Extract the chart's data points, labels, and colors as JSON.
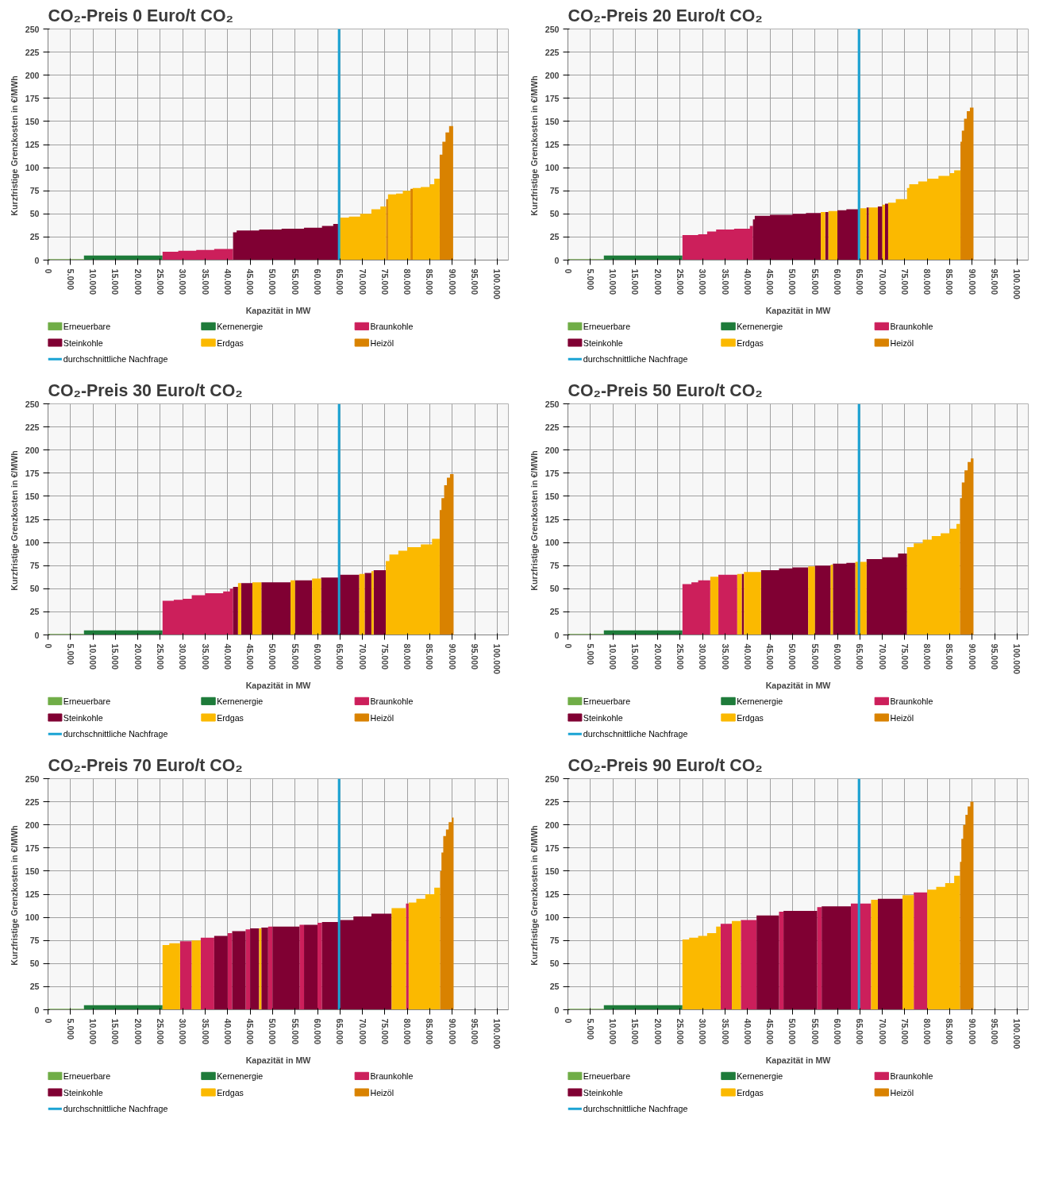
{
  "chart_data": [
    {
      "type": "area",
      "title": "CO₂-Preis 0 Euro/t CO₂",
      "xlabel": "Kapazität in MW",
      "ylabel": "Kurzfristige Grenzkosten  in €/MWh",
      "xlim": [
        0,
        102500
      ],
      "ylim": [
        0,
        250
      ],
      "xticks": [
        0,
        {
          "value": 5000,
          "label": "5.000"
        },
        {
          "value": 10000,
          "label": "10.000"
        },
        {
          "value": 15000,
          "label": "15.000"
        },
        {
          "value": 20000,
          "label": "20.000"
        },
        {
          "value": 25000,
          "label": "25.000"
        },
        {
          "value": 30000,
          "label": "30.000"
        },
        {
          "value": 35000,
          "label": "35.000"
        },
        {
          "value": 40000,
          "label": "40.000"
        },
        {
          "value": 45000,
          "label": "45.000"
        },
        {
          "value": 50000,
          "label": "50.000"
        },
        {
          "value": 55000,
          "label": "55.000"
        },
        {
          "value": 60000,
          "label": "60.000"
        },
        {
          "value": 65000,
          "label": "65.000"
        },
        {
          "value": 70000,
          "label": "70.000"
        },
        {
          "value": 75000,
          "label": "75.000"
        },
        {
          "value": 80000,
          "label": "80.000"
        },
        {
          "value": 85000,
          "label": "85.000"
        },
        {
          "value": 90000,
          "label": "90.000"
        },
        {
          "value": 95000,
          "label": "95.000"
        },
        {
          "value": 100000,
          "label": "100.000"
        }
      ],
      "yticks": [
        0,
        25,
        50,
        75,
        100,
        125,
        150,
        175,
        200,
        225,
        250
      ],
      "grid": true,
      "legend": "bottom",
      "series": [
        {
          "name": "Erneuerbare",
          "color": "#70ad47",
          "x": [
            0,
            8000
          ],
          "values": [
            1,
            1
          ]
        },
        {
          "name": "Kernenergie",
          "color": "#1e7b3a",
          "x": [
            8000,
            25500
          ],
          "values": [
            5,
            5
          ]
        },
        {
          "name": "Braunkohle",
          "color": "#cc1f5b",
          "x": [
            25500,
            29000,
            33000,
            37000,
            41200
          ],
          "values": [
            9,
            10,
            11,
            12,
            12
          ]
        },
        {
          "name": "Steinkohle",
          "color": "#800033",
          "x": [
            41200,
            42000,
            47000,
            52000,
            57000,
            61000,
            63500,
            64800
          ],
          "values": [
            30,
            32,
            33,
            34,
            35,
            37,
            39,
            39
          ]
        },
        {
          "name": "Erdgas",
          "color": "#fbb900",
          "x": [
            64800,
            67000,
            69500,
            72000,
            74000,
            75300,
            75700,
            77500,
            79000,
            80700,
            81200,
            83000,
            85000,
            86000,
            87200
          ],
          "values": [
            46,
            47,
            50,
            55,
            58,
            null,
            71,
            72,
            75,
            null,
            78,
            79,
            82,
            88,
            88
          ]
        },
        {
          "name": "Heizöl",
          "color": "#d98200",
          "x": [
            75300,
            75700,
            80700,
            81200,
            87200,
            87800,
            88500,
            89300,
            90200
          ],
          "values": [
            66,
            null,
            77,
            null,
            114,
            128,
            138,
            145,
            145
          ]
        }
      ],
      "ref_lines": [
        {
          "axis": "x",
          "value": 64800,
          "label": "durchschnittliche Nachfrage",
          "color": "#1aa3d4"
        }
      ]
    },
    {
      "type": "area",
      "title": "CO₂-Preis 20 Euro/t CO₂",
      "xlabel": "Kapazität in MW",
      "ylabel": "Kurzfristige Grenzkosten  in €/MWh",
      "xlim": [
        0,
        102500
      ],
      "ylim": [
        0,
        250
      ],
      "xticks": [
        0,
        {
          "value": 5000,
          "label": "5.000"
        },
        {
          "value": 10000,
          "label": "10.000"
        },
        {
          "value": 15000,
          "label": "15.000"
        },
        {
          "value": 20000,
          "label": "20.000"
        },
        {
          "value": 25000,
          "label": "25.000"
        },
        {
          "value": 30000,
          "label": "30.000"
        },
        {
          "value": 35000,
          "label": "35.000"
        },
        {
          "value": 40000,
          "label": "40.000"
        },
        {
          "value": 45000,
          "label": "45.000"
        },
        {
          "value": 50000,
          "label": "50.000"
        },
        {
          "value": 55000,
          "label": "55.000"
        },
        {
          "value": 60000,
          "label": "60.000"
        },
        {
          "value": 65000,
          "label": "65.000"
        },
        {
          "value": 70000,
          "label": "70.000"
        },
        {
          "value": 75000,
          "label": "75.000"
        },
        {
          "value": 80000,
          "label": "80.000"
        },
        {
          "value": 85000,
          "label": "85.000"
        },
        {
          "value": 90000,
          "label": "90.000"
        },
        {
          "value": 95000,
          "label": "95.000"
        },
        {
          "value": 100000,
          "label": "100.000"
        }
      ],
      "yticks": [
        0,
        25,
        50,
        75,
        100,
        125,
        150,
        175,
        200,
        225,
        250
      ],
      "grid": true,
      "legend": "bottom",
      "series": [
        {
          "name": "Erneuerbare",
          "color": "#70ad47",
          "x": [
            0,
            8000
          ],
          "values": [
            1,
            1
          ]
        },
        {
          "name": "Kernenergie",
          "color": "#1e7b3a",
          "x": [
            8000,
            25500
          ],
          "values": [
            5,
            5
          ]
        },
        {
          "name": "Braunkohle",
          "color": "#cc1f5b",
          "x": [
            25500,
            29000,
            31000,
            33000,
            37000,
            40500,
            41200
          ],
          "values": [
            27,
            28,
            31,
            33,
            34,
            37,
            37
          ]
        },
        {
          "name": "Steinkohle",
          "color": "#800033",
          "x": [
            41200,
            41600,
            45000,
            50000,
            53000,
            56300,
            57300,
            58000,
            60000,
            62000,
            64800,
            66500,
            67000,
            69000,
            70000,
            70600,
            71300
          ],
          "values": [
            44,
            48,
            49,
            50,
            51,
            null,
            52,
            null,
            54,
            55,
            null,
            57,
            null,
            58,
            null,
            61,
            61
          ]
        },
        {
          "name": "Erdgas",
          "color": "#fbb900",
          "x": [
            56300,
            57300,
            58000,
            60000,
            64800,
            66500,
            67000,
            69000,
            70000,
            70600,
            71300,
            73000,
            75500,
            76000,
            78000,
            80000,
            82500,
            85000,
            86000,
            87400
          ],
          "values": [
            52,
            null,
            53,
            null,
            56,
            null,
            57,
            null,
            60,
            null,
            62,
            66,
            78,
            82,
            85,
            88,
            91,
            94,
            97,
            97
          ]
        },
        {
          "name": "Heizöl",
          "color": "#d98200",
          "x": [
            87400,
            87700,
            88200,
            88800,
            89500,
            90300
          ],
          "values": [
            128,
            140,
            153,
            161,
            165,
            165
          ]
        }
      ],
      "ref_lines": [
        {
          "axis": "x",
          "value": 64800,
          "label": "durchschnittliche Nachfrage",
          "color": "#1aa3d4"
        }
      ]
    },
    {
      "type": "area",
      "title": "CO₂-Preis 30 Euro/t CO₂",
      "xlabel": "Kapazität in MW",
      "ylabel": "Kurzfristige Grenzkosten  in €/MWh",
      "xlim": [
        0,
        102500
      ],
      "ylim": [
        0,
        250
      ],
      "xticks": [
        0,
        {
          "value": 5000,
          "label": "5.000"
        },
        {
          "value": 10000,
          "label": "10.000"
        },
        {
          "value": 15000,
          "label": "15.000"
        },
        {
          "value": 20000,
          "label": "20.000"
        },
        {
          "value": 25000,
          "label": "25.000"
        },
        {
          "value": 30000,
          "label": "30.000"
        },
        {
          "value": 35000,
          "label": "35.000"
        },
        {
          "value": 40000,
          "label": "40.000"
        },
        {
          "value": 45000,
          "label": "45.000"
        },
        {
          "value": 50000,
          "label": "50.000"
        },
        {
          "value": 55000,
          "label": "55.000"
        },
        {
          "value": 60000,
          "label": "60.000"
        },
        {
          "value": 65000,
          "label": "65.000"
        },
        {
          "value": 70000,
          "label": "70.000"
        },
        {
          "value": 75000,
          "label": "75.000"
        },
        {
          "value": 80000,
          "label": "80.000"
        },
        {
          "value": 85000,
          "label": "85.000"
        },
        {
          "value": 90000,
          "label": "90.000"
        },
        {
          "value": 95000,
          "label": "95.000"
        },
        {
          "value": 100000,
          "label": "100.000"
        }
      ],
      "yticks": [
        0,
        25,
        50,
        75,
        100,
        125,
        150,
        175,
        200,
        225,
        250
      ],
      "grid": true,
      "legend": "bottom",
      "series": [
        {
          "name": "Erneuerbare",
          "color": "#70ad47",
          "x": [
            0,
            8000
          ],
          "values": [
            1,
            1
          ]
        },
        {
          "name": "Kernenergie",
          "color": "#1e7b3a",
          "x": [
            8000,
            25500
          ],
          "values": [
            5,
            5
          ]
        },
        {
          "name": "Braunkohle",
          "color": "#cc1f5b",
          "x": [
            25500,
            28000,
            30000,
            32000,
            35000,
            39000,
            40500,
            41200
          ],
          "values": [
            37,
            38,
            39,
            43,
            45,
            47,
            50,
            50
          ]
        },
        {
          "name": "Steinkohle",
          "color": "#800033",
          "x": [
            41200,
            42300,
            43000,
            45500,
            47500,
            54000,
            55000,
            58800,
            60800,
            64800,
            64900,
            69300,
            70500,
            72000,
            72500,
            75200
          ],
          "values": [
            52,
            null,
            56,
            null,
            57,
            null,
            59,
            null,
            62,
            null,
            65,
            null,
            67,
            null,
            70,
            70
          ]
        },
        {
          "name": "Erdgas",
          "color": "#fbb900",
          "x": [
            42300,
            43000,
            45500,
            47500,
            54000,
            55000,
            58800,
            60800,
            64800,
            64900,
            69300,
            70500,
            72000,
            72500,
            75200,
            76000,
            78000,
            80000,
            83000,
            85500,
            87200
          ],
          "values": [
            56,
            null,
            57,
            null,
            59,
            null,
            61,
            null,
            64,
            null,
            66,
            null,
            69,
            null,
            80,
            87,
            91,
            95,
            98,
            104,
            104
          ]
        },
        {
          "name": "Heizöl",
          "color": "#d98200",
          "x": [
            87200,
            87600,
            88200,
            88800,
            89500,
            90300
          ],
          "values": [
            135,
            148,
            162,
            170,
            174,
            174
          ]
        }
      ],
      "ref_lines": [
        {
          "axis": "x",
          "value": 64800,
          "label": "durchschnittliche Nachfrage",
          "color": "#1aa3d4"
        }
      ]
    },
    {
      "type": "area",
      "title": "CO₂-Preis 50 Euro/t CO₂",
      "xlabel": "Kapazität in MW",
      "ylabel": "Kurzfristige Grenzkosten  in €/MWh",
      "xlim": [
        0,
        102500
      ],
      "ylim": [
        0,
        250
      ],
      "xticks": [
        0,
        {
          "value": 5000,
          "label": "5.000"
        },
        {
          "value": 10000,
          "label": "10.000"
        },
        {
          "value": 15000,
          "label": "15.000"
        },
        {
          "value": 20000,
          "label": "20.000"
        },
        {
          "value": 25000,
          "label": "25.000"
        },
        {
          "value": 30000,
          "label": "30.000"
        },
        {
          "value": 35000,
          "label": "35.000"
        },
        {
          "value": 40000,
          "label": "40.000"
        },
        {
          "value": 45000,
          "label": "45.000"
        },
        {
          "value": 50000,
          "label": "50.000"
        },
        {
          "value": 55000,
          "label": "55.000"
        },
        {
          "value": 60000,
          "label": "60.000"
        },
        {
          "value": 65000,
          "label": "65.000"
        },
        {
          "value": 70000,
          "label": "70.000"
        },
        {
          "value": 75000,
          "label": "75.000"
        },
        {
          "value": 80000,
          "label": "80.000"
        },
        {
          "value": 85000,
          "label": "85.000"
        },
        {
          "value": 90000,
          "label": "90.000"
        },
        {
          "value": 95000,
          "label": "95.000"
        },
        {
          "value": 100000,
          "label": "100.000"
        }
      ],
      "yticks": [
        0,
        25,
        50,
        75,
        100,
        125,
        150,
        175,
        200,
        225,
        250
      ],
      "grid": true,
      "legend": "bottom",
      "series": [
        {
          "name": "Erneuerbare",
          "color": "#70ad47",
          "x": [
            0,
            8000
          ],
          "values": [
            1,
            1
          ]
        },
        {
          "name": "Kernenergie",
          "color": "#1e7b3a",
          "x": [
            8000,
            25500
          ],
          "values": [
            5,
            5
          ]
        },
        {
          "name": "Braunkohle",
          "color": "#cc1f5b",
          "x": [
            25500,
            27500,
            29000,
            31700,
            33500,
            37700
          ],
          "values": [
            55,
            57,
            59,
            null,
            65,
            65
          ]
        },
        {
          "name": "Steinkohle",
          "color": "#800033",
          "x": [
            38700,
            39200,
            43000,
            47000,
            50000,
            53500,
            55000,
            58500,
            59000,
            62000,
            64000,
            66500,
            70000,
            73500,
            75500
          ],
          "values": [
            66,
            null,
            70,
            72,
            73,
            null,
            75,
            null,
            77,
            78,
            null,
            82,
            84,
            88,
            88
          ]
        },
        {
          "name": "Erdgas",
          "color": "#fbb900",
          "x": [
            31700,
            33500,
            37700,
            38700,
            39200,
            43000,
            53500,
            55000,
            58500,
            59000,
            64000,
            66500,
            75500,
            77000,
            79000,
            81000,
            83000,
            85000,
            86500,
            87300
          ],
          "values": [
            63,
            null,
            66,
            null,
            68,
            null,
            74,
            null,
            76,
            null,
            79,
            null,
            95,
            99,
            103,
            107,
            110,
            115,
            120,
            120
          ]
        },
        {
          "name": "Heizöl",
          "color": "#d98200",
          "x": [
            87300,
            87700,
            88300,
            89000,
            89700,
            90300
          ],
          "values": [
            148,
            165,
            178,
            187,
            191,
            191
          ]
        }
      ],
      "ref_lines": [
        {
          "axis": "x",
          "value": 64800,
          "label": "durchschnittliche Nachfrage",
          "color": "#1aa3d4"
        }
      ]
    },
    {
      "type": "area",
      "title": "CO₂-Preis 70 Euro/t CO₂",
      "xlabel": "Kapazität in MW",
      "ylabel": "Kurzfristige Grenzkosten  in €/MWh",
      "xlim": [
        0,
        102500
      ],
      "ylim": [
        0,
        250
      ],
      "xticks": [
        0,
        {
          "value": 5000,
          "label": "5.000"
        },
        {
          "value": 10000,
          "label": "10.000"
        },
        {
          "value": 15000,
          "label": "15.000"
        },
        {
          "value": 20000,
          "label": "20.000"
        },
        {
          "value": 25000,
          "label": "25.000"
        },
        {
          "value": 30000,
          "label": "30.000"
        },
        {
          "value": 35000,
          "label": "35.000"
        },
        {
          "value": 40000,
          "label": "40.000"
        },
        {
          "value": 45000,
          "label": "45.000"
        },
        {
          "value": 50000,
          "label": "50.000"
        },
        {
          "value": 55000,
          "label": "55.000"
        },
        {
          "value": 60000,
          "label": "60.000"
        },
        {
          "value": 65000,
          "label": "65.000"
        },
        {
          "value": 70000,
          "label": "70.000"
        },
        {
          "value": 75000,
          "label": "75.000"
        },
        {
          "value": 80000,
          "label": "80.000"
        },
        {
          "value": 85000,
          "label": "85.000"
        },
        {
          "value": 90000,
          "label": "90.000"
        },
        {
          "value": 95000,
          "label": "95.000"
        },
        {
          "value": 100000,
          "label": "100.000"
        }
      ],
      "yticks": [
        0,
        25,
        50,
        75,
        100,
        125,
        150,
        175,
        200,
        225,
        250
      ],
      "grid": true,
      "legend": "bottom",
      "series": [
        {
          "name": "Erneuerbare",
          "color": "#70ad47",
          "x": [
            0,
            8000
          ],
          "values": [
            1,
            1
          ]
        },
        {
          "name": "Kernenergie",
          "color": "#1e7b3a",
          "x": [
            8000,
            25500
          ],
          "values": [
            5,
            5
          ]
        },
        {
          "name": "Braunkohle",
          "color": "#cc1f5b",
          "x": [
            29400,
            32000,
            34000,
            37000,
            40000,
            41000,
            44000,
            45000,
            49000,
            50000,
            56000,
            57000,
            60000,
            61000,
            79700,
            80300
          ],
          "values": [
            74,
            null,
            78,
            null,
            83,
            null,
            87,
            null,
            90,
            null,
            92,
            null,
            94,
            null,
            115,
            115
          ]
        },
        {
          "name": "Steinkohle",
          "color": "#800033",
          "x": [
            37000,
            40000,
            41000,
            44000,
            45000,
            47000,
            47500,
            49000,
            50000,
            56000,
            57000,
            60000,
            61000,
            64800,
            68000,
            72000,
            76500
          ],
          "values": [
            80,
            null,
            85,
            null,
            88,
            null,
            89,
            null,
            90,
            null,
            92,
            null,
            95,
            97,
            101,
            104,
            104
          ]
        },
        {
          "name": "Erdgas",
          "color": "#fbb900",
          "x": [
            25500,
            27000,
            29400,
            32000,
            34000,
            47000,
            47500,
            76500,
            79700,
            80300,
            82000,
            84000,
            86000,
            87300
          ],
          "values": [
            70,
            72,
            null,
            75,
            null,
            88,
            null,
            110,
            null,
            116,
            120,
            125,
            132,
            132
          ]
        },
        {
          "name": "Heizöl",
          "color": "#d98200",
          "x": [
            87300,
            87600,
            88000,
            88600,
            89200,
            89900,
            90300
          ],
          "values": [
            150,
            170,
            188,
            195,
            203,
            208,
            208
          ]
        }
      ],
      "ref_lines": [
        {
          "axis": "x",
          "value": 64800,
          "label": "durchschnittliche Nachfrage",
          "color": "#1aa3d4"
        }
      ]
    },
    {
      "type": "area",
      "title": "CO₂-Preis 90 Euro/t CO₂",
      "xlabel": "Kapazität in MW",
      "ylabel": "Kurzfristige Grenzkosten  in €/MWh",
      "xlim": [
        0,
        102500
      ],
      "ylim": [
        0,
        250
      ],
      "xticks": [
        0,
        {
          "value": 5000,
          "label": "5.000"
        },
        {
          "value": 10000,
          "label": "10.000"
        },
        {
          "value": 15000,
          "label": "15.000"
        },
        {
          "value": 20000,
          "label": "20.000"
        },
        {
          "value": 25000,
          "label": "25.000"
        },
        {
          "value": 30000,
          "label": "30.000"
        },
        {
          "value": 35000,
          "label": "35.000"
        },
        {
          "value": 40000,
          "label": "40.000"
        },
        {
          "value": 45000,
          "label": "45.000"
        },
        {
          "value": 50000,
          "label": "50.000"
        },
        {
          "value": 55000,
          "label": "55.000"
        },
        {
          "value": 60000,
          "label": "60.000"
        },
        {
          "value": 65000,
          "label": "65.000"
        },
        {
          "value": 70000,
          "label": "70.000"
        },
        {
          "value": 75000,
          "label": "75.000"
        },
        {
          "value": 80000,
          "label": "80.000"
        },
        {
          "value": 85000,
          "label": "85.000"
        },
        {
          "value": 90000,
          "label": "90.000"
        },
        {
          "value": 95000,
          "label": "95.000"
        },
        {
          "value": 100000,
          "label": "100.000"
        }
      ],
      "yticks": [
        0,
        25,
        50,
        75,
        100,
        125,
        150,
        175,
        200,
        225,
        250
      ],
      "grid": true,
      "legend": "bottom",
      "series": [
        {
          "name": "Erneuerbare",
          "color": "#70ad47",
          "x": [
            0,
            8000
          ],
          "values": [
            1,
            1
          ]
        },
        {
          "name": "Kernenergie",
          "color": "#1e7b3a",
          "x": [
            8000,
            25500
          ],
          "values": [
            5,
            5
          ]
        },
        {
          "name": "Braunkohle",
          "color": "#cc1f5b",
          "x": [
            34000,
            36500,
            38500,
            42000,
            47000,
            48000,
            55500,
            56500,
            63000,
            67500,
            77000,
            80000
          ],
          "values": [
            93,
            null,
            97,
            null,
            106,
            null,
            111,
            null,
            115,
            null,
            127,
            127
          ]
        },
        {
          "name": "Steinkohle",
          "color": "#800033",
          "x": [
            42000,
            47000,
            48000,
            55500,
            56500,
            63000,
            69000,
            74500
          ],
          "values": [
            102,
            null,
            107,
            null,
            112,
            null,
            120,
            120
          ]
        },
        {
          "name": "Erdgas",
          "color": "#fbb900",
          "x": [
            25500,
            27000,
            29000,
            31000,
            33000,
            34000,
            36500,
            38500,
            67500,
            69000,
            74500,
            77000,
            80000,
            82000,
            84000,
            86000,
            87300
          ],
          "values": [
            76,
            78,
            80,
            83,
            90,
            null,
            96,
            null,
            119,
            null,
            124,
            null,
            130,
            133,
            137,
            145,
            145
          ]
        },
        {
          "name": "Heizöl",
          "color": "#d98200",
          "x": [
            87300,
            87600,
            88000,
            88500,
            89000,
            89600,
            90300
          ],
          "values": [
            160,
            185,
            200,
            211,
            220,
            225,
            225
          ]
        }
      ],
      "ref_lines": [
        {
          "axis": "x",
          "value": 64800,
          "label": "durchschnittliche Nachfrage",
          "color": "#1aa3d4"
        }
      ]
    }
  ]
}
